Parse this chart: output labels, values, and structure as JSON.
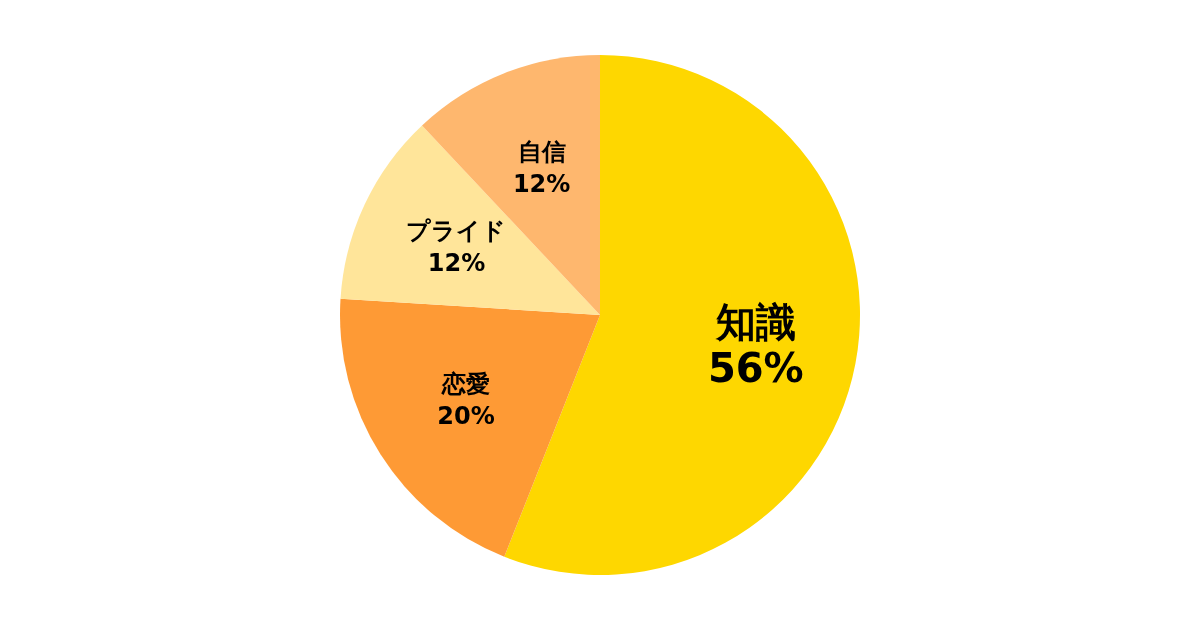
{
  "chart_data": {
    "type": "pie",
    "categories": [
      "知識",
      "恋愛",
      "プライド",
      "自信"
    ],
    "values": [
      56,
      20,
      12,
      12
    ],
    "value_labels": [
      "56%",
      "20%",
      "12%",
      "12%"
    ],
    "colors": [
      "#fed700",
      "#fe9a35",
      "#ffe59a",
      "#feb76e"
    ]
  }
}
